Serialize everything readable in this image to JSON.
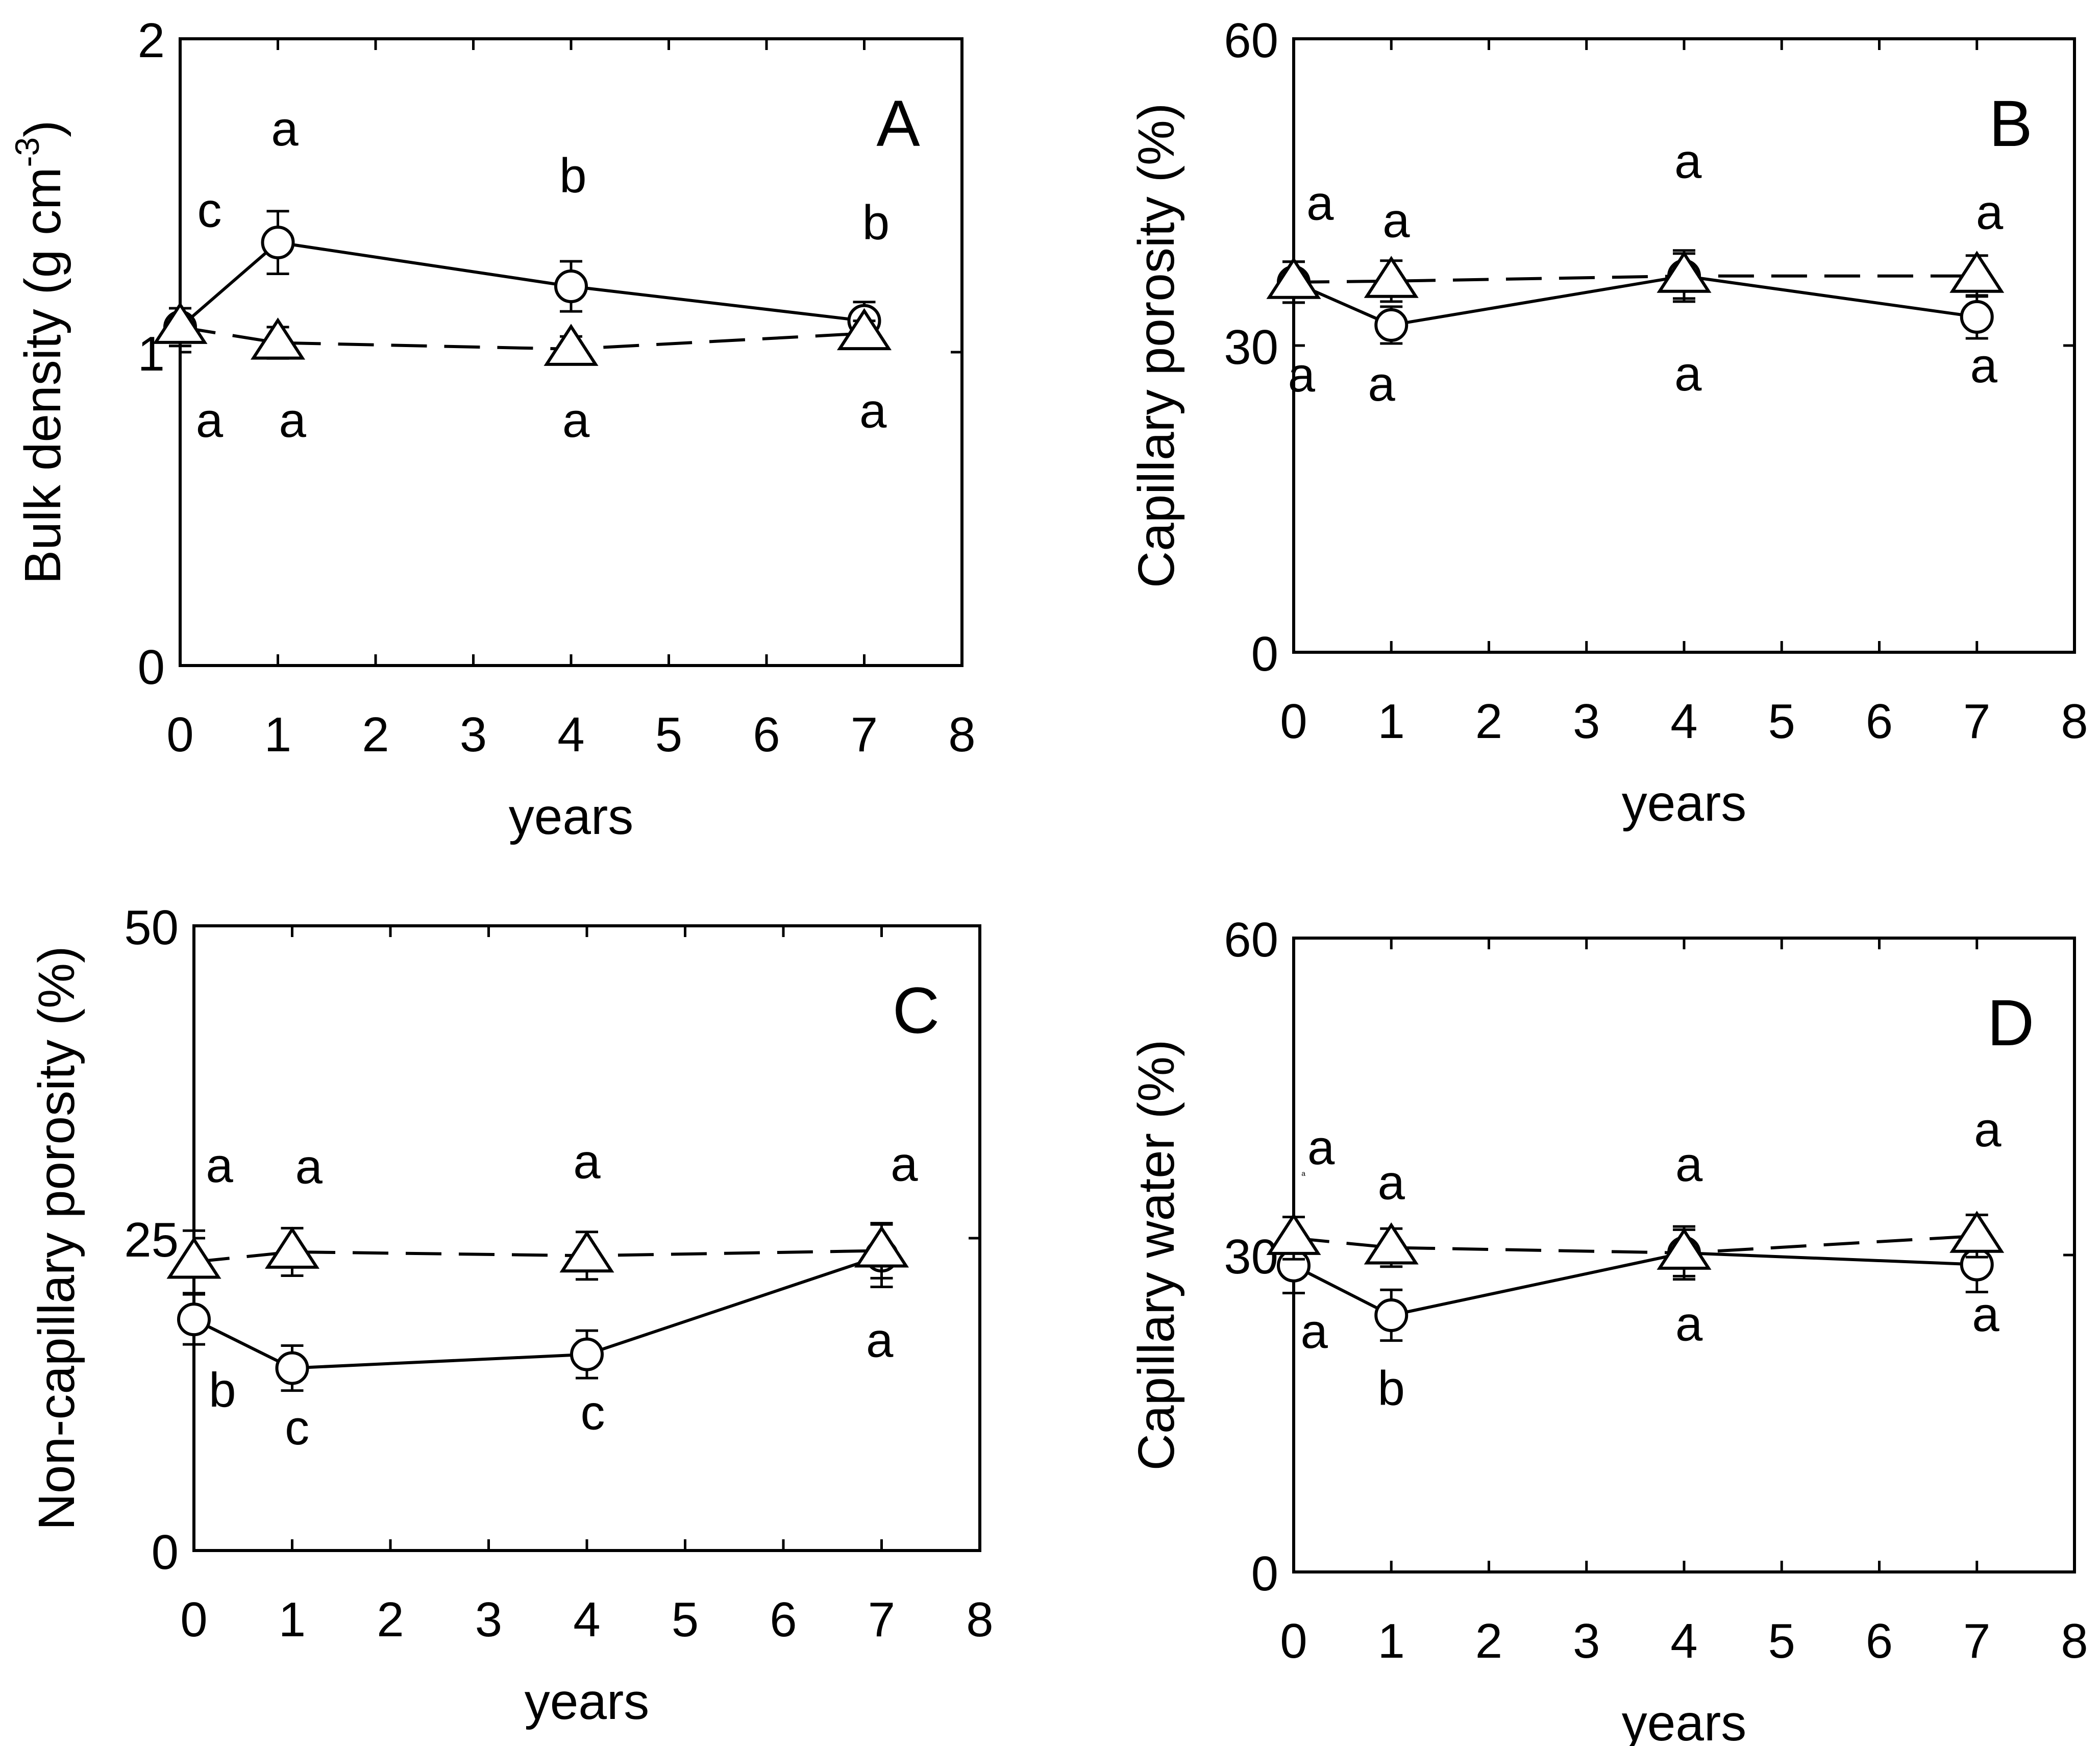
{
  "chart_data": [
    {
      "type": "line",
      "panel_label": "A",
      "xlabel": "years",
      "ylabel": "Bulk density (g cm-3)",
      "ylabel_parts": {
        "base": "Bulk density (g cm",
        "superscript": "-3",
        "close": ")"
      },
      "xlim": [
        0,
        8
      ],
      "ylim": [
        0,
        2
      ],
      "xticks": [
        "0",
        "1",
        "2",
        "3",
        "4",
        "5",
        "6",
        "7",
        "8"
      ],
      "yticks": [
        {
          "value": 0,
          "label": "0"
        },
        {
          "value": 1,
          "label": "1"
        },
        {
          "value": 2,
          "label": "2"
        }
      ],
      "series": [
        {
          "name": "circle",
          "marker": "circle",
          "linestyle": "solid",
          "x": [
            0,
            1,
            4,
            7
          ],
          "y": [
            1.08,
            1.35,
            1.21,
            1.1
          ],
          "err": [
            0.06,
            0.1,
            0.08,
            0.06
          ]
        },
        {
          "name": "triangle",
          "marker": "triangle",
          "linestyle": "dashed",
          "x": [
            0,
            1,
            4,
            7
          ],
          "y": [
            1.08,
            1.03,
            1.01,
            1.06
          ],
          "err": [
            0.06,
            0.05,
            0.04,
            0.04
          ]
        }
      ],
      "annotations": [
        {
          "text": "c",
          "x": 0.3,
          "y": 1.4
        },
        {
          "text": "a",
          "x": 1.07,
          "y": 1.66
        },
        {
          "text": "b",
          "x": 4.02,
          "y": 1.51
        },
        {
          "text": "b",
          "x": 7.12,
          "y": 1.36
        },
        {
          "text": "a",
          "x": 0.3,
          "y": 0.73
        },
        {
          "text": "a",
          "x": 1.15,
          "y": 0.73
        },
        {
          "text": "a",
          "x": 4.05,
          "y": 0.73
        },
        {
          "text": "a",
          "x": 7.09,
          "y": 0.76
        }
      ]
    },
    {
      "type": "line",
      "panel_label": "B",
      "xlabel": "years",
      "ylabel": "Capillary porosity (%)",
      "xlim": [
        0,
        8
      ],
      "ylim": [
        0,
        60
      ],
      "xticks": [
        "0",
        "1",
        "2",
        "3",
        "4",
        "5",
        "6",
        "7",
        "8"
      ],
      "yticks": [
        {
          "value": 0,
          "label": "0"
        },
        {
          "value": 30,
          "label": "30"
        },
        {
          "value": 60,
          "label": "60"
        }
      ],
      "series": [
        {
          "name": "circle",
          "marker": "circle",
          "linestyle": "solid",
          "x": [
            0,
            4,
            1,
            7
          ],
          "y": [
            36.2,
            36.8,
            32,
            32.8
          ],
          "err": [
            2,
            2.2,
            1.8,
            2.1
          ],
          "order": "sorted"
        },
        {
          "name": "triangle",
          "marker": "triangle",
          "linestyle": "dashed",
          "x": [
            0,
            1,
            4,
            7
          ],
          "y": [
            36.2,
            36.3,
            36.8,
            36.8
          ],
          "err": [
            2,
            2,
            2.5,
            2
          ]
        }
      ],
      "annotations": [
        {
          "text": "a",
          "x": 0.27,
          "y": 42.3
        },
        {
          "text": "a",
          "x": 0.08,
          "y": 25.5
        },
        {
          "text": "a",
          "x": 1.05,
          "y": 40.6
        },
        {
          "text": "a",
          "x": 0.9,
          "y": 24.6
        },
        {
          "text": "a",
          "x": 4.04,
          "y": 46.4
        },
        {
          "text": "a",
          "x": 4.04,
          "y": 25.6
        },
        {
          "text": "a",
          "x": 7.13,
          "y": 41.4
        },
        {
          "text": "a",
          "x": 7.07,
          "y": 26.4
        }
      ]
    },
    {
      "type": "line",
      "panel_label": "C",
      "xlabel": "years",
      "ylabel": "Non-capillary porosity (%)",
      "xlim": [
        0,
        8
      ],
      "ylim": [
        0,
        50
      ],
      "xticks": [
        "0",
        "1",
        "2",
        "3",
        "4",
        "5",
        "6",
        "7",
        "8"
      ],
      "yticks": [
        {
          "value": 0,
          "label": "0"
        },
        {
          "value": 25,
          "label": "25"
        },
        {
          "value": 50,
          "label": "50"
        }
      ],
      "series": [
        {
          "name": "circle",
          "marker": "circle",
          "linestyle": "solid",
          "x": [
            0,
            1,
            4,
            7
          ],
          "y": [
            18.5,
            14.6,
            15.7,
            23.6
          ],
          "err": [
            2,
            1.8,
            1.9,
            2.5
          ]
        },
        {
          "name": "triangle",
          "marker": "triangle",
          "linestyle": "dashed",
          "x": [
            0,
            1,
            4,
            7
          ],
          "y": [
            23.1,
            23.9,
            23.6,
            24
          ],
          "err": [
            2.5,
            1.9,
            1.9,
            2.2
          ]
        }
      ],
      "annotations": [
        {
          "text": "a",
          "x": 0.26,
          "y": 29.5
        },
        {
          "text": "a",
          "x": 1.17,
          "y": 29.4
        },
        {
          "text": "a",
          "x": 4.0,
          "y": 29.8
        },
        {
          "text": "a",
          "x": 7.23,
          "y": 29.6
        },
        {
          "text": "b",
          "x": 0.29,
          "y": 11.5
        },
        {
          "text": "c",
          "x": 1.05,
          "y": 8.5
        },
        {
          "text": "c",
          "x": 4.06,
          "y": 9.7
        },
        {
          "text": "a",
          "x": 6.98,
          "y": 15.5
        }
      ]
    },
    {
      "type": "line",
      "panel_label": "D",
      "xlabel": "years",
      "ylabel": "Capillary water (%)",
      "xlim": [
        0,
        8
      ],
      "ylim": [
        0,
        60
      ],
      "xticks": [
        "0",
        "1",
        "2",
        "3",
        "4",
        "5",
        "6",
        "7",
        "8"
      ],
      "yticks": [
        {
          "value": 0,
          "label": "0"
        },
        {
          "value": 30,
          "label": "30"
        },
        {
          "value": 60,
          "label": "60"
        }
      ],
      "series": [
        {
          "name": "circle",
          "marker": "circle",
          "linestyle": "solid",
          "x": [
            0,
            1,
            4,
            7
          ],
          "y": [
            29,
            24.3,
            30.2,
            29.1
          ],
          "err": [
            2.6,
            2.4,
            2.5,
            2.6
          ]
        },
        {
          "name": "triangle",
          "marker": "triangle",
          "linestyle": "dashed",
          "x": [
            0,
            1,
            4,
            7
          ],
          "y": [
            31.6,
            30.7,
            30.2,
            31.8
          ],
          "err": [
            2,
            1.8,
            2.2,
            2
          ]
        }
      ],
      "annotations": [
        {
          "text": "a",
          "x": 0.28,
          "y": 38.6
        },
        {
          "text": "a",
          "x": 0.21,
          "y": 21.2
        },
        {
          "text": "a",
          "x": 1.0,
          "y": 35.3
        },
        {
          "text": "b",
          "x": 1.0,
          "y": 15.8
        },
        {
          "text": "a",
          "x": 4.05,
          "y": 37
        },
        {
          "text": "a",
          "x": 4.05,
          "y": 21.9
        },
        {
          "text": "a",
          "x": 7.11,
          "y": 40.3
        },
        {
          "text": "a",
          "x": 7.09,
          "y": 22.8
        }
      ],
      "minor_marks": [
        {
          "text": "a",
          "x": 0.1,
          "y": 37.5
        }
      ]
    }
  ]
}
